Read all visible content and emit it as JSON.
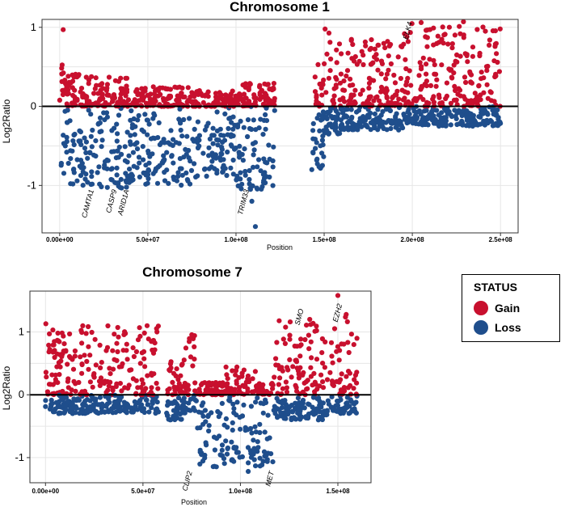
{
  "colors": {
    "gain": "#c8102e",
    "loss": "#1f4e8c"
  },
  "legend": {
    "title": "STATUS",
    "items": [
      {
        "label": "Gain",
        "color": "#c8102e"
      },
      {
        "label": "Loss",
        "color": "#1f4e8c"
      }
    ]
  },
  "chart_data": [
    {
      "type": "scatter",
      "title": "Chromosome 1",
      "xlabel": "Position",
      "ylabel": "Log2Ratio",
      "xlim": [
        -10000000,
        260000000
      ],
      "ylim": [
        -1.6,
        1.1
      ],
      "x_ticks": [
        0,
        50000000,
        100000000,
        150000000,
        200000000,
        250000000
      ],
      "x_tick_labels": [
        "0.00e+00",
        "5.0e+07",
        "1.0e+08",
        "1.5e+08",
        "2.0e+08",
        "2.5e+08"
      ],
      "y_ticks": [
        -1,
        0,
        1
      ],
      "y_tick_labels": [
        "-1",
        "0",
        "1"
      ],
      "gaps": [
        [
          122000000,
          143000000
        ]
      ],
      "profile": [
        {
          "x0": 0,
          "x1": 5000000,
          "gmax": 0.6,
          "lmin": -0.95
        },
        {
          "x0": 5000000,
          "x1": 15000000,
          "gmax": 0.45,
          "lmin": -1.0
        },
        {
          "x0": 15000000,
          "x1": 40000000,
          "gmax": 0.38,
          "lmin": -1.05
        },
        {
          "x0": 40000000,
          "x1": 75000000,
          "gmax": 0.25,
          "lmin": -1.0
        },
        {
          "x0": 75000000,
          "x1": 100000000,
          "gmax": 0.2,
          "lmin": -0.9
        },
        {
          "x0": 100000000,
          "x1": 122000000,
          "gmax": 0.3,
          "lmin": -1.05
        },
        {
          "x0": 143000000,
          "x1": 150000000,
          "gmax": 0.7,
          "lmin": -0.8
        },
        {
          "x0": 150000000,
          "x1": 160000000,
          "gmax": 1.05,
          "lmin": -0.35
        },
        {
          "x0": 160000000,
          "x1": 195000000,
          "gmax": 0.85,
          "lmin": -0.3
        },
        {
          "x0": 195000000,
          "x1": 250000000,
          "gmax": 1.05,
          "lmin": -0.25
        }
      ],
      "outliers": [
        {
          "x": 2000000,
          "y": 0.97
        },
        {
          "x": 111000000,
          "y": -1.52
        },
        {
          "x": 109000000,
          "y": -1.2
        },
        {
          "x": 143000000,
          "y": -0.8
        },
        {
          "x": 229000000,
          "y": 1.07
        },
        {
          "x": 205000000,
          "y": 1.06
        }
      ],
      "annotations": [
        {
          "label": "CAMTA1",
          "x": 18000000,
          "y": -1.0
        },
        {
          "label": "CASP9",
          "x": 31000000,
          "y": -1.0
        },
        {
          "label": "ARID1A",
          "x": 38000000,
          "y": -1.0
        },
        {
          "label": "TRIM33",
          "x": 106000000,
          "y": -1.0
        },
        {
          "label": "ELK4",
          "x": 196000000,
          "y": 0.8
        }
      ]
    },
    {
      "type": "scatter",
      "title": "Chromosome 7",
      "xlabel": "Position",
      "ylabel": "Log2Ratio",
      "xlim": [
        -8000000,
        167000000
      ],
      "ylim": [
        -1.4,
        1.65
      ],
      "x_ticks": [
        0,
        50000000,
        100000000,
        150000000
      ],
      "x_tick_labels": [
        "0.00e+00",
        "5.0e+07",
        "1.0e+08",
        "1.5e+08"
      ],
      "y_ticks": [
        -1,
        0,
        1
      ],
      "y_tick_labels": [
        "-1",
        "0",
        "1"
      ],
      "gaps": [
        [
          58000000,
          62000000
        ]
      ],
      "profile": [
        {
          "x0": 0,
          "x1": 5000000,
          "gmax": 1.2,
          "lmin": -0.3
        },
        {
          "x0": 5000000,
          "x1": 58000000,
          "gmax": 1.1,
          "lmin": -0.3
        },
        {
          "x0": 62000000,
          "x1": 70000000,
          "gmax": 0.6,
          "lmin": -0.4
        },
        {
          "x0": 70000000,
          "x1": 77000000,
          "gmax": 1.0,
          "lmin": -0.3
        },
        {
          "x0": 77000000,
          "x1": 92000000,
          "gmax": 0.2,
          "lmin": -1.15
        },
        {
          "x0": 92000000,
          "x1": 108000000,
          "gmax": 0.45,
          "lmin": -1.15
        },
        {
          "x0": 108000000,
          "x1": 117000000,
          "gmax": 0.2,
          "lmin": -1.2
        },
        {
          "x0": 117000000,
          "x1": 148000000,
          "gmax": 1.2,
          "lmin": -0.4
        },
        {
          "x0": 148000000,
          "x1": 160000000,
          "gmax": 1.3,
          "lmin": -0.3
        }
      ],
      "outliers": [
        {
          "x": 150000000,
          "y": 1.58
        },
        {
          "x": 104000000,
          "y": -1.22
        },
        {
          "x": 64000000,
          "y": -0.4
        }
      ],
      "annotations": [
        {
          "label": "CLIP2",
          "x": 74000000,
          "y": -1.15
        },
        {
          "label": "MET",
          "x": 116000000,
          "y": -1.15
        },
        {
          "label": "SMO",
          "x": 129000000,
          "y": 1.05
        },
        {
          "label": "EZH2",
          "x": 148500000,
          "y": 1.1
        }
      ]
    }
  ]
}
